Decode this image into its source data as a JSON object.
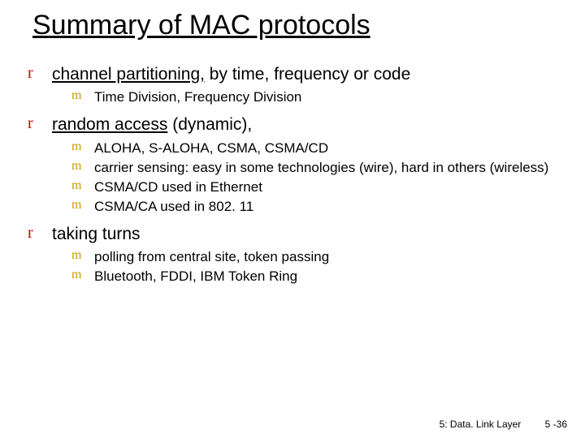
{
  "title": "Summary of MAC protocols",
  "r_marker_color": "#cc0000",
  "m_marker_color": "#cc9900",
  "text_color": "#000000",
  "background_color": "#ffffff",
  "bullets": [
    {
      "html": "<span style=\"text-decoration:underline\">channel partitioning,</span> by time, frequency or code",
      "sub": [
        "Time Division, Frequency Division"
      ]
    },
    {
      "html": "<span style=\"text-decoration:underline\">random access</span> (dynamic),",
      "sub": [
        "ALOHA, S-ALOHA, CSMA, CSMA/CD",
        "carrier sensing: easy in some technologies (wire), hard in others (wireless)",
        "CSMA/CD used in Ethernet",
        "CSMA/CA used in 802. 11"
      ]
    },
    {
      "html": "taking turns",
      "sub": [
        "polling from central site, token passing",
        "Bluetooth, FDDI, IBM Token Ring"
      ]
    }
  ],
  "footer_left": "5: Data. Link Layer",
  "footer_right": "5 -36"
}
